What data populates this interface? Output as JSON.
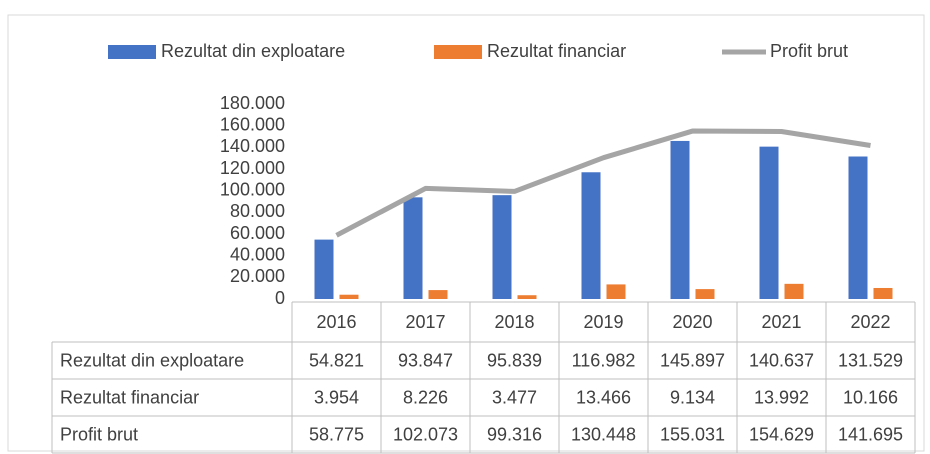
{
  "chart_data": {
    "type": "bar",
    "categories": [
      "2016",
      "2017",
      "2018",
      "2019",
      "2020",
      "2021",
      "2022"
    ],
    "series": [
      {
        "name": "Rezultat din exploatare",
        "color": "#4472c4",
        "type": "bar",
        "values": [
          54821,
          93847,
          95839,
          116982,
          145897,
          140637,
          131529
        ],
        "value_labels": [
          "54.821",
          "93.847",
          "95.839",
          "116.982",
          "145.897",
          "140.637",
          "131.529"
        ]
      },
      {
        "name": "Rezultat financiar",
        "color": "#ed7d31",
        "type": "bar",
        "values": [
          3954,
          8226,
          3477,
          13466,
          9134,
          13992,
          10166
        ],
        "value_labels": [
          "3.954",
          "8.226",
          "3.477",
          "13.466",
          "9.134",
          "13.992",
          "10.166"
        ]
      },
      {
        "name": "Profit brut",
        "color": "#a5a5a5",
        "type": "line",
        "values": [
          58775,
          102073,
          99316,
          130448,
          155031,
          154629,
          141695
        ],
        "value_labels": [
          "58.775",
          "102.073",
          "99.316",
          "130.448",
          "155.031",
          "154.629",
          "141.695"
        ]
      }
    ],
    "ylim": [
      0,
      180000
    ],
    "yticks": [
      0,
      {
        "value": 20000,
        "label": "20.000"
      },
      {
        "value": 40000,
        "label": "40.000"
      },
      {
        "value": 60000,
        "label": "60.000"
      },
      {
        "value": 80000,
        "label": "80.000"
      },
      {
        "value": 100000,
        "label": "100.000"
      },
      {
        "value": 120000,
        "label": "120.000"
      },
      {
        "value": 140000,
        "label": "140.000"
      },
      {
        "value": 160000,
        "label": "160.000"
      },
      {
        "value": 180000,
        "label": "180.000"
      }
    ],
    "grid": false,
    "legend": "top",
    "data_table": true
  }
}
